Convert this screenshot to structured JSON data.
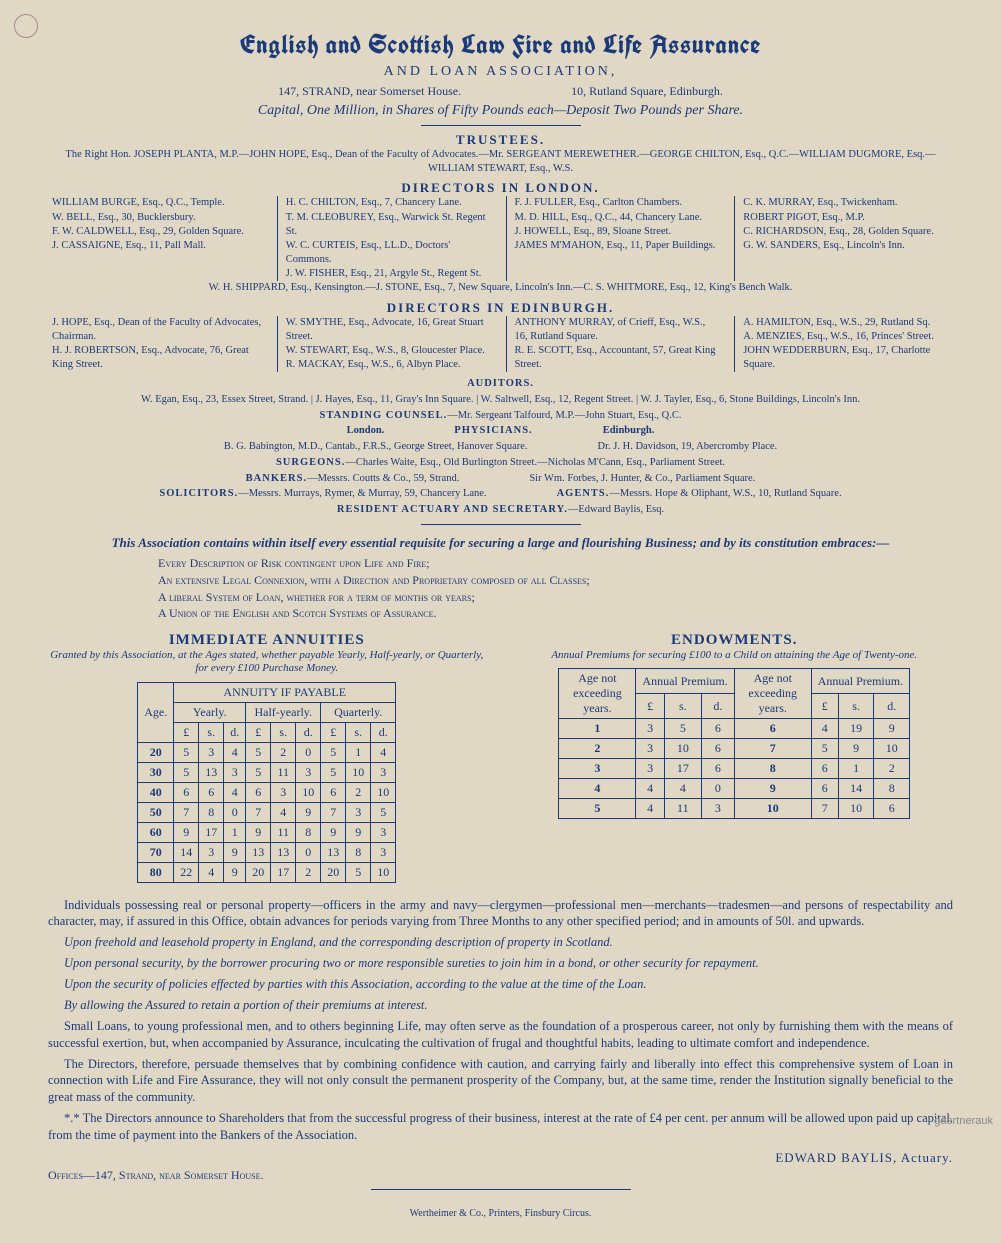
{
  "colors": {
    "ink": "#1b3a7a",
    "paper": "#e0d8c4"
  },
  "title": "English and Scottish Law Fire and Life Assurance",
  "subtitle": "AND LOAN ASSOCIATION,",
  "addresses": [
    "147, STRAND, near Somerset House.",
    "10, Rutland Square, Edinburgh."
  ],
  "capital": "Capital, One Million, in Shares of Fifty Pounds each—Deposit Two Pounds per Share.",
  "trustees": {
    "head": "TRUSTEES.",
    "text": "The Right Hon. JOSEPH PLANTA, M.P.—JOHN HOPE, Esq., Dean of the Faculty of Advocates.—Mr. SERGEANT MEREWETHER.—GEORGE CHILTON, Esq., Q.C.—WILLIAM DUGMORE, Esq.—WILLIAM STEWART, Esq., W.S."
  },
  "dir_london": {
    "head": "DIRECTORS IN LONDON.",
    "cols": [
      [
        "WILLIAM BURGE, Esq., Q.C., Temple.",
        "W. BELL, Esq., 30, Bucklersbury.",
        "F. W. CALDWELL, Esq., 29, Golden Square.",
        "J. CASSAIGNE, Esq., 11, Pall Mall."
      ],
      [
        "H. C. CHILTON, Esq., 7, Chancery Lane.",
        "T. M. CLEOBUREY, Esq., Warwick St. Regent St.",
        "W. C. CURTEIS, Esq., LL.D., Doctors' Commons.",
        "J. W. FISHER, Esq., 21, Argyle St., Regent St."
      ],
      [
        "F. J. FULLER, Esq., Carlton Chambers.",
        "M. D. HILL, Esq., Q.C., 44, Chancery Lane.",
        "J. HOWELL, Esq., 89, Sloane Street.",
        "JAMES M'MAHON, Esq., 11, Paper Buildings."
      ],
      [
        "C. K. MURRAY, Esq., Twickenham.",
        "ROBERT PIGOT, Esq., M.P.",
        "C. RICHARDSON, Esq., 28, Golden Square.",
        "G. W. SANDERS, Esq., Lincoln's Inn."
      ]
    ],
    "foot": "W. H. SHIPPARD, Esq., Kensington.—J. STONE, Esq., 7, New Square, Lincoln's Inn.—C. S. WHITMORE, Esq., 12, King's Bench Walk."
  },
  "dir_edin": {
    "head": "DIRECTORS IN EDINBURGH.",
    "cols": [
      [
        "J. HOPE, Esq., Dean of the Faculty of Advocates, Chairman.",
        "H. J. ROBERTSON, Esq., Advocate, 76, Great King Street."
      ],
      [
        "W. SMYTHE, Esq., Advocate, 16, Great Stuart Street.",
        "W. STEWART, Esq., W.S., 8, Gloucester Place.",
        "R. MACKAY, Esq., W.S., 6, Albyn Place."
      ],
      [
        "ANTHONY MURRAY, of Crieff, Esq., W.S., 16, Rutland Square.",
        "R. E. SCOTT, Esq., Accountant, 57, Great King Street."
      ],
      [
        "A. HAMILTON, Esq., W.S., 29, Rutland Sq.",
        "A. MENZIES, Esq., W.S., 16, Princes' Street.",
        "JOHN WEDDERBURN, Esq., 17, Charlotte Square."
      ]
    ]
  },
  "auditors": {
    "head": "AUDITORS.",
    "text": "W. Egan, Esq., 23, Essex Street, Strand. | J. Hayes, Esq., 11, Gray's Inn Square. | W. Saltwell, Esq., 12, Regent Street. | W. J. Tayler, Esq., 6, Stone Buildings, Lincoln's Inn."
  },
  "counsel": {
    "head": "STANDING COUNSEL.",
    "text": "—Mr. Sergeant Talfourd, M.P.—John Stuart, Esq., Q.C."
  },
  "physicians": {
    "head": "PHYSICIANS.",
    "london_head": "London.",
    "london": "B. G. Babington, M.D., Cantab., F.R.S., George Street, Hanover Square.",
    "edin_head": "Edinburgh.",
    "edin": "Dr. J. H. Davidson, 19, Abercromby Place."
  },
  "surgeons": {
    "head": "SURGEONS.",
    "text": "—Charles Waite, Esq., Old Burlington Street.—Nicholas M'Cann, Esq., Parliament Street."
  },
  "bankers": {
    "head": "BANKERS.",
    "left": "—Messrs. Coutts & Co., 59, Strand.",
    "right": "Sir Wm. Forbes, J. Hunter, & Co., Parliament Square."
  },
  "solicitors": {
    "head": "SOLICITORS.",
    "text": "—Messrs. Murrays, Rymer, & Murray, 59, Chancery Lane."
  },
  "agents": {
    "head": "AGENTS.",
    "text": "—Messrs. Hope & Oliphant, W.S., 10, Rutland Square."
  },
  "actuary": {
    "head": "RESIDENT ACTUARY AND SECRETARY.",
    "text": "—Edward Baylis, Esq."
  },
  "intro": "This Association contains within itself every essential requisite for securing a large and flourishing Business; and by its constitution embraces:—",
  "features": [
    "Every Description of Risk contingent upon Life and Fire;",
    "An extensive Legal Connexion, with a Direction and Proprietary composed of all Classes;",
    "A liberal System of Loan, whether for a term of months or years;",
    "A Union of the English and Scotch Systems of Assurance."
  ],
  "annuities": {
    "title": "IMMEDIATE ANNUITIES",
    "sub": "Granted by this Association, at the Ages stated, whether payable Yearly, Half-yearly, or Quarterly, for every £100 Purchase Money.",
    "group_head": "ANNUITY IF PAYABLE",
    "cols": [
      "Age.",
      "Yearly.",
      "Half-yearly.",
      "Quarterly."
    ],
    "lsd": [
      "£",
      "s.",
      "d."
    ],
    "rows": [
      {
        "age": "20",
        "y": [
          "5",
          "3",
          "4"
        ],
        "h": [
          "5",
          "2",
          "0"
        ],
        "q": [
          "5",
          "1",
          "4"
        ]
      },
      {
        "age": "30",
        "y": [
          "5",
          "13",
          "3"
        ],
        "h": [
          "5",
          "11",
          "3"
        ],
        "q": [
          "5",
          "10",
          "3"
        ]
      },
      {
        "age": "40",
        "y": [
          "6",
          "6",
          "4"
        ],
        "h": [
          "6",
          "3",
          "10"
        ],
        "q": [
          "6",
          "2",
          "10"
        ]
      },
      {
        "age": "50",
        "y": [
          "7",
          "8",
          "0"
        ],
        "h": [
          "7",
          "4",
          "9"
        ],
        "q": [
          "7",
          "3",
          "5"
        ]
      },
      {
        "age": "60",
        "y": [
          "9",
          "17",
          "1"
        ],
        "h": [
          "9",
          "11",
          "8"
        ],
        "q": [
          "9",
          "9",
          "3"
        ]
      },
      {
        "age": "70",
        "y": [
          "14",
          "3",
          "9"
        ],
        "h": [
          "13",
          "13",
          "0"
        ],
        "q": [
          "13",
          "8",
          "3"
        ]
      },
      {
        "age": "80",
        "y": [
          "22",
          "4",
          "9"
        ],
        "h": [
          "20",
          "17",
          "2"
        ],
        "q": [
          "20",
          "5",
          "10"
        ]
      }
    ]
  },
  "endowments": {
    "title": "ENDOWMENTS.",
    "sub": "Annual Premiums for securing £100 to a Child on attaining the Age of Twenty-one.",
    "col_age": "Age not exceeding years.",
    "col_prem": "Annual Premium.",
    "lsd": [
      "£",
      "s.",
      "d."
    ],
    "left": [
      {
        "age": "1",
        "p": [
          "3",
          "5",
          "6"
        ]
      },
      {
        "age": "2",
        "p": [
          "3",
          "10",
          "6"
        ]
      },
      {
        "age": "3",
        "p": [
          "3",
          "17",
          "6"
        ]
      },
      {
        "age": "4",
        "p": [
          "4",
          "4",
          "0"
        ]
      },
      {
        "age": "5",
        "p": [
          "4",
          "11",
          "3"
        ]
      }
    ],
    "right": [
      {
        "age": "6",
        "p": [
          "4",
          "19",
          "9"
        ]
      },
      {
        "age": "7",
        "p": [
          "5",
          "9",
          "10"
        ]
      },
      {
        "age": "8",
        "p": [
          "6",
          "1",
          "2"
        ]
      },
      {
        "age": "9",
        "p": [
          "6",
          "14",
          "8"
        ]
      },
      {
        "age": "10",
        "p": [
          "7",
          "10",
          "6"
        ]
      }
    ]
  },
  "body": [
    "Individuals possessing real or personal property—officers in the army and navy—clergymen—professional men—merchants—tradesmen—and persons of respectability and character, may, if assured in this Office, obtain advances for periods varying from Three Months to any other specified period; and in amounts of 50l. and upwards.",
    "Upon freehold and leasehold property in England, and the corresponding description of property in Scotland.",
    "Upon personal security, by the borrower procuring two or more responsible sureties to join him in a bond, or other security for repayment.",
    "Upon the security of policies effected by parties with this Association, according to the value at the time of the Loan.",
    "By allowing the Assured to retain a portion of their premiums at interest.",
    "Small Loans, to young professional men, and to others beginning Life, may often serve as the foundation of a prosperous career, not only by furnishing them with the means of successful exertion, but, when accompanied by Assurance, inculcating the cultivation of frugal and thoughtful habits, leading to ultimate comfort and independence.",
    "The Directors, therefore, persuade themselves that by combining confidence with caution, and carrying fairly and liberally into effect this comprehensive system of Loan in connection with Life and Fire Assurance, they will not only consult the permanent prosperity of the Company, but, at the same time, render the Institution signally beneficial to the great mass of the community.",
    "*.* The Directors announce to Shareholders that from the successful progress of their business, interest at the rate of £4 per cent. per annum will be allowed upon paid up capital, from the time of payment into the Bankers of the Association."
  ],
  "signature": "EDWARD BAYLIS, Actuary.",
  "office": "Offices—147, Strand, near Somerset House.",
  "printer": "Wertheimer & Co., Printers, Finsbury Circus.",
  "watermark": "gaertnerauk"
}
